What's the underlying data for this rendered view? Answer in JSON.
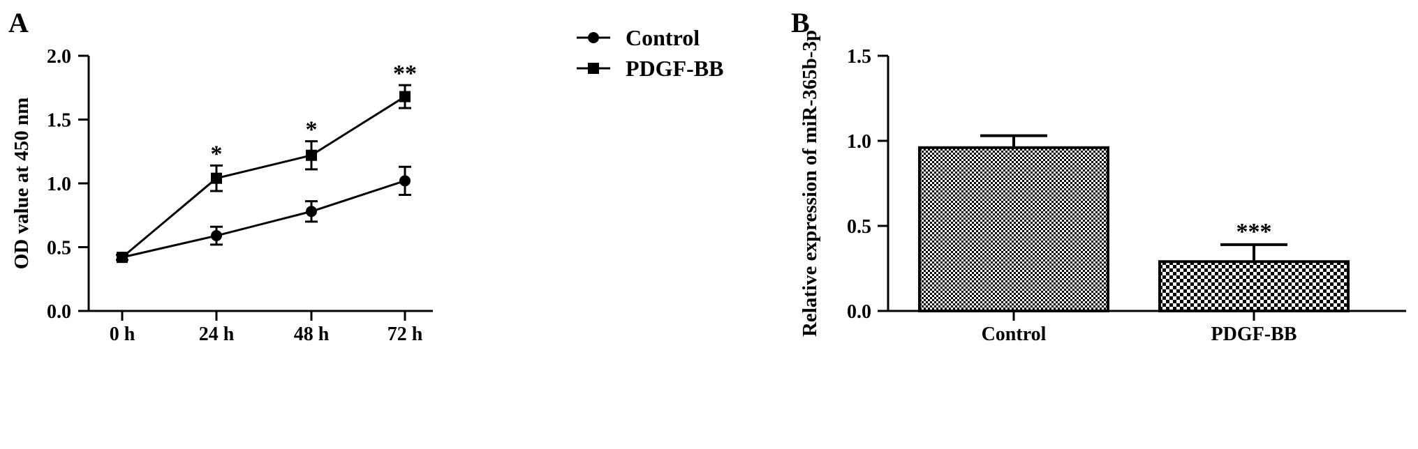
{
  "chart_data": [
    {
      "panel": "A",
      "type": "line",
      "categories": [
        "0 h",
        "24 h",
        "48 h",
        "72 h"
      ],
      "ylabel": "OD value at 450 nm",
      "xlabel": "",
      "ylim": [
        0,
        2.0
      ],
      "yticks": [
        "0.0",
        "0.5",
        "1.0",
        "1.5",
        "2.0"
      ],
      "legend_position": "top-right",
      "grid": false,
      "series": [
        {
          "name": "Control",
          "marker": "circle",
          "values": [
            0.42,
            0.59,
            0.78,
            1.02
          ],
          "errors": [
            0.02,
            0.07,
            0.08,
            0.11
          ],
          "annotations": [
            "",
            "",
            "",
            ""
          ]
        },
        {
          "name": "PDGF-BB",
          "marker": "square",
          "values": [
            0.42,
            1.04,
            1.22,
            1.68
          ],
          "errors": [
            0.02,
            0.1,
            0.11,
            0.09
          ],
          "annotations": [
            "",
            "*",
            "*",
            "**"
          ]
        }
      ]
    },
    {
      "panel": "B",
      "type": "bar",
      "categories": [
        "Control",
        "PDGF-BB"
      ],
      "values": [
        0.96,
        0.29
      ],
      "errors": [
        0.07,
        0.1
      ],
      "annotations": [
        "",
        "***"
      ],
      "ylabel": "Relative expression of miR-365b-3p",
      "xlabel": "",
      "ylim": [
        0,
        1.5
      ],
      "yticks": [
        "0.0",
        "0.5",
        "1.0",
        "1.5"
      ],
      "grid": false,
      "fill_pattern": [
        "fine-checker",
        "coarse-checker"
      ]
    }
  ],
  "colors": {
    "ink": "#000000",
    "background": "#ffffff"
  }
}
